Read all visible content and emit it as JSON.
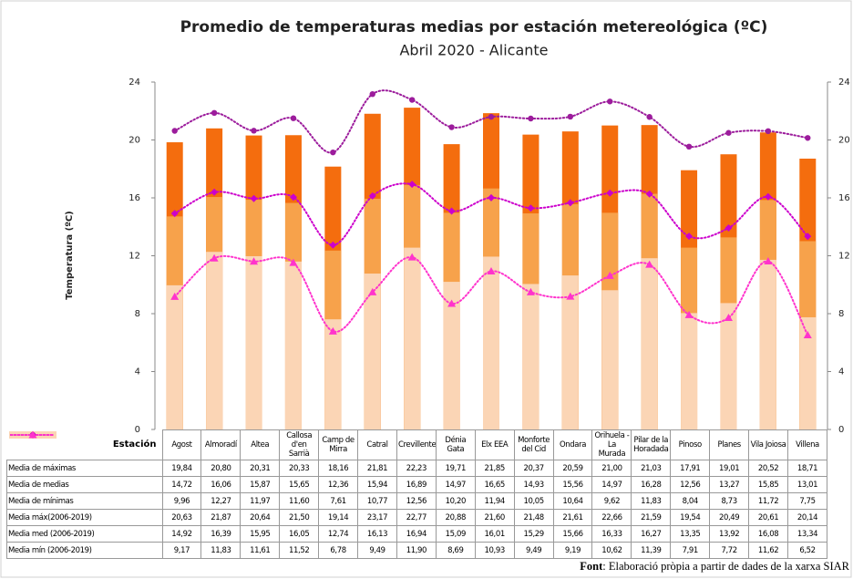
{
  "chart_data": {
    "type": "bar",
    "title": "Promedio de temperaturas medias por estación metereológica (ºC)",
    "subtitle": "Abril 2020 - Alicante",
    "y_label": "Temperatura (ºC)",
    "table_header": "Estación",
    "footer": {
      "label": "Font",
      "text": ": Elaboració pròpia a partir de dades de la xarxa SIAR"
    },
    "categories": [
      "Agost",
      "Almoradí",
      "Altea",
      "Callosa d'en Sarrià",
      "Camp de Mirra",
      "Catral",
      "Crevillente",
      "Dénia Gata",
      "Elx EEA",
      "Monforte del Cid",
      "Ondara",
      "Orihuela - La Murada",
      "Pilar de la Horadada",
      "Pinoso",
      "Planes",
      "Vila Joiosa",
      "Villena"
    ],
    "ylim": [
      0,
      24
    ],
    "yticks": [
      0,
      4,
      8,
      12,
      16,
      20,
      24
    ],
    "y2lim": [
      0,
      24
    ],
    "y2ticks": [
      0,
      4,
      8,
      12,
      16,
      20,
      24
    ],
    "series": [
      {
        "name": "Media de máximas",
        "type": "bar",
        "color": "#f46d0e",
        "values": [
          19.84,
          20.8,
          20.31,
          20.33,
          18.16,
          21.81,
          22.23,
          19.71,
          21.85,
          20.37,
          20.59,
          21.0,
          21.03,
          17.91,
          19.01,
          20.52,
          18.71
        ],
        "value_labels": [
          "19,84",
          "20,80",
          "20,31",
          "20,33",
          "18,16",
          "21,81",
          "22,23",
          "19,71",
          "21,85",
          "20,37",
          "20,59",
          "21,00",
          "21,03",
          "17,91",
          "19,01",
          "20,52",
          "18,71"
        ]
      },
      {
        "name": "Media de medias",
        "type": "bar",
        "color": "#f7a24b",
        "values": [
          14.72,
          16.06,
          15.87,
          15.65,
          12.36,
          15.94,
          16.89,
          14.97,
          16.65,
          14.93,
          15.56,
          14.97,
          16.28,
          12.56,
          13.27,
          15.85,
          13.01
        ],
        "value_labels": [
          "14,72",
          "16,06",
          "15,87",
          "15,65",
          "12,36",
          "15,94",
          "16,89",
          "14,97",
          "16,65",
          "14,93",
          "15,56",
          "14,97",
          "16,28",
          "12,56",
          "13,27",
          "15,85",
          "13,01"
        ]
      },
      {
        "name": "Media de mínimas",
        "type": "bar",
        "color": "#fbd5b5",
        "values": [
          9.96,
          12.27,
          11.97,
          11.6,
          7.61,
          10.77,
          12.56,
          10.2,
          11.94,
          10.05,
          10.64,
          9.62,
          11.83,
          8.04,
          8.73,
          11.72,
          7.75
        ],
        "value_labels": [
          "9,96",
          "12,27",
          "11,97",
          "11,60",
          "7,61",
          "10,77",
          "12,56",
          "10,20",
          "11,94",
          "10,05",
          "10,64",
          "9,62",
          "11,83",
          "8,04",
          "8,73",
          "11,72",
          "7,75"
        ]
      },
      {
        "name": "Media máx(2006-2019)",
        "type": "line",
        "marker": "circle",
        "color": "#9c1c9c",
        "values": [
          20.63,
          21.87,
          20.64,
          21.5,
          19.14,
          23.17,
          22.77,
          20.88,
          21.6,
          21.48,
          21.61,
          22.66,
          21.59,
          19.54,
          20.49,
          20.61,
          20.14
        ],
        "value_labels": [
          "20,63",
          "21,87",
          "20,64",
          "21,50",
          "19,14",
          "23,17",
          "22,77",
          "20,88",
          "21,60",
          "21,48",
          "21,61",
          "22,66",
          "21,59",
          "19,54",
          "20,49",
          "20,61",
          "20,14"
        ]
      },
      {
        "name": "Media med (2006-2019)",
        "type": "line",
        "marker": "diamond",
        "color": "#cc00cc",
        "values": [
          14.92,
          16.39,
          15.95,
          16.05,
          12.74,
          16.13,
          16.94,
          15.09,
          16.01,
          15.29,
          15.66,
          16.33,
          16.27,
          13.35,
          13.92,
          16.08,
          13.34
        ],
        "value_labels": [
          "14,92",
          "16,39",
          "15,95",
          "16,05",
          "12,74",
          "16,13",
          "16,94",
          "15,09",
          "16,01",
          "15,29",
          "15,66",
          "16,33",
          "16,27",
          "13,35",
          "13,92",
          "16,08",
          "13,34"
        ]
      },
      {
        "name": "Media mín (2006-2019)",
        "type": "line",
        "marker": "triangle",
        "color": "#ff33cc",
        "values": [
          9.17,
          11.83,
          11.61,
          11.52,
          6.78,
          9.49,
          11.9,
          8.69,
          10.93,
          9.49,
          9.19,
          10.62,
          11.39,
          7.91,
          7.72,
          11.62,
          6.52
        ],
        "value_labels": [
          "9,17",
          "11,83",
          "11,61",
          "11,52",
          "6,78",
          "9,49",
          "11,90",
          "8,69",
          "10,93",
          "9,49",
          "9,19",
          "10,62",
          "11,39",
          "7,91",
          "7,72",
          "11,62",
          "6,52"
        ]
      }
    ]
  }
}
